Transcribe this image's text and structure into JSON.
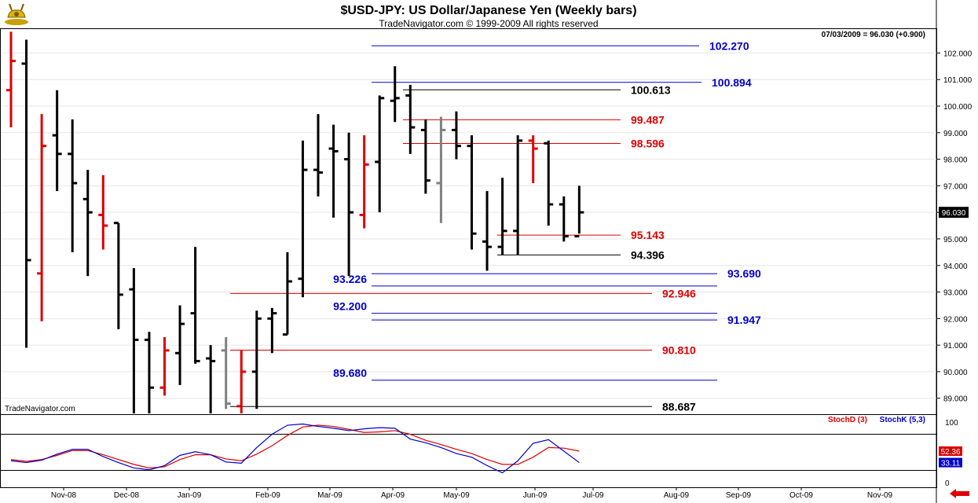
{
  "header": {
    "title": "$USD-JPY:  US Dollar/Japanese Yen  (Weekly bars)",
    "copyright": "TradeNavigator.com © 1999-2009 All rights reserved",
    "last_quote": "07/03/2009 = 96.030 (+0.900)",
    "watermark": "TradeNavigator.com",
    "logo_icon": "bull-icon"
  },
  "chart_data": [
    {
      "type": "ohlc",
      "title": "$USD-JPY:  US Dollar/Japanese Yen  (Weekly bars)",
      "ylim": [
        88.4,
        102.9
      ],
      "y_ticks": [
        89.0,
        90.0,
        91.0,
        92.0,
        93.0,
        94.0,
        95.0,
        96.0,
        97.0,
        98.0,
        99.0,
        100.0,
        101.0,
        102.0
      ],
      "y_tick_labels": [
        "89.000",
        "90.000",
        "91.000",
        "92.000",
        "93.000",
        "94.000",
        "95.000",
        "96.000",
        "97.000",
        "98.000",
        "99.000",
        "100.000",
        "101.000",
        "102.000"
      ],
      "x_month_labels": [
        "Nov-08",
        "Dec-08",
        "Jan-09",
        "Feb-09",
        "Mar-09",
        "Apr-09",
        "May-09",
        "Jun-09",
        "Jul-09",
        "Aug-09",
        "Sep-09",
        "Oct-09",
        "Nov-09"
      ],
      "last_price_label": "96.030",
      "bars": [
        {
          "o": 100.6,
          "h": 102.8,
          "l": 99.2,
          "c": 101.7,
          "color": "red"
        },
        {
          "o": 101.6,
          "h": 102.5,
          "l": 90.9,
          "c": 94.2,
          "color": "black"
        },
        {
          "o": 93.7,
          "h": 99.7,
          "l": 91.9,
          "c": 98.5,
          "color": "red"
        },
        {
          "o": 98.9,
          "h": 100.6,
          "l": 96.8,
          "c": 98.2,
          "color": "black"
        },
        {
          "o": 98.2,
          "h": 99.5,
          "l": 94.5,
          "c": 97.1,
          "color": "black"
        },
        {
          "o": 96.5,
          "h": 97.6,
          "l": 93.6,
          "c": 96.0,
          "color": "black"
        },
        {
          "o": 95.9,
          "h": 97.4,
          "l": 94.6,
          "c": 95.5,
          "color": "red"
        },
        {
          "o": 95.6,
          "h": 95.6,
          "l": 91.6,
          "c": 92.9,
          "color": "black"
        },
        {
          "o": 93.1,
          "h": 93.9,
          "l": 88.4,
          "c": 91.2,
          "color": "black"
        },
        {
          "o": 91.2,
          "h": 91.5,
          "l": 88.4,
          "c": 89.4,
          "color": "black"
        },
        {
          "o": 89.4,
          "h": 91.3,
          "l": 89.1,
          "c": 90.8,
          "color": "red"
        },
        {
          "o": 90.7,
          "h": 92.5,
          "l": 89.5,
          "c": 91.8,
          "color": "black"
        },
        {
          "o": 92.2,
          "h": 94.7,
          "l": 90.3,
          "c": 90.4,
          "color": "black"
        },
        {
          "o": 90.5,
          "h": 91.0,
          "l": 88.4,
          "c": 90.4,
          "color": "black"
        },
        {
          "o": 90.8,
          "h": 91.3,
          "l": 88.6,
          "c": 88.8,
          "color": "gray"
        },
        {
          "o": 88.7,
          "h": 90.8,
          "l": 88.4,
          "c": 90.0,
          "color": "red"
        },
        {
          "o": 90.0,
          "h": 92.3,
          "l": 88.6,
          "c": 92.0,
          "color": "black"
        },
        {
          "o": 92.0,
          "h": 92.4,
          "l": 90.7,
          "c": 92.2,
          "color": "black"
        },
        {
          "o": 91.4,
          "h": 94.5,
          "l": 91.4,
          "c": 93.4,
          "color": "black"
        },
        {
          "o": 93.5,
          "h": 98.7,
          "l": 92.8,
          "c": 97.6,
          "color": "black"
        },
        {
          "o": 97.6,
          "h": 99.7,
          "l": 96.6,
          "c": 97.5,
          "color": "black"
        },
        {
          "o": 98.4,
          "h": 99.3,
          "l": 95.8,
          "c": 98.3,
          "color": "black"
        },
        {
          "o": 98.0,
          "h": 99.0,
          "l": 93.6,
          "c": 96.0,
          "color": "black"
        },
        {
          "o": 95.9,
          "h": 98.9,
          "l": 95.4,
          "c": 97.8,
          "color": "red"
        },
        {
          "o": 97.9,
          "h": 100.4,
          "l": 96.0,
          "c": 100.3,
          "color": "black"
        },
        {
          "o": 100.2,
          "h": 101.5,
          "l": 99.4,
          "c": 100.3,
          "color": "black"
        },
        {
          "o": 100.4,
          "h": 100.8,
          "l": 98.2,
          "c": 99.2,
          "color": "black"
        },
        {
          "o": 99.1,
          "h": 99.5,
          "l": 96.7,
          "c": 97.2,
          "color": "black"
        },
        {
          "o": 97.1,
          "h": 99.6,
          "l": 95.6,
          "c": 99.1,
          "color": "gray"
        },
        {
          "o": 99.1,
          "h": 99.8,
          "l": 98.0,
          "c": 98.5,
          "color": "black"
        },
        {
          "o": 98.5,
          "h": 98.9,
          "l": 94.6,
          "c": 95.2,
          "color": "black"
        },
        {
          "o": 94.9,
          "h": 96.8,
          "l": 93.8,
          "c": 94.7,
          "color": "black"
        },
        {
          "o": 94.7,
          "h": 97.3,
          "l": 94.4,
          "c": 95.3,
          "color": "black"
        },
        {
          "o": 95.3,
          "h": 98.9,
          "l": 94.4,
          "c": 98.7,
          "color": "black"
        },
        {
          "o": 98.7,
          "h": 98.9,
          "l": 97.1,
          "c": 98.4,
          "color": "red"
        },
        {
          "o": 98.6,
          "h": 98.7,
          "l": 95.5,
          "c": 96.3,
          "color": "black"
        },
        {
          "o": 96.3,
          "h": 96.6,
          "l": 94.9,
          "c": 95.1,
          "color": "black"
        },
        {
          "o": 95.1,
          "h": 97.0,
          "l": 95.2,
          "c": 96.0,
          "color": "black"
        }
      ],
      "levels": [
        {
          "value": 102.27,
          "label": "102.270",
          "color": "#0000cc",
          "label_side": "right"
        },
        {
          "value": 100.894,
          "label": "100.894",
          "color": "#0000cc",
          "label_side": "right"
        },
        {
          "value": 100.613,
          "label": "100.613",
          "color": "#000000",
          "label_side": "right"
        },
        {
          "value": 99.487,
          "label": "99.487",
          "color": "#dd0000",
          "label_side": "right"
        },
        {
          "value": 98.596,
          "label": "98.596",
          "color": "#dd0000",
          "label_side": "right"
        },
        {
          "value": 95.143,
          "label": "95.143",
          "color": "#dd0000",
          "label_side": "right"
        },
        {
          "value": 94.396,
          "label": "94.396",
          "color": "#000000",
          "label_side": "right"
        },
        {
          "value": 93.69,
          "label": "93.690",
          "color": "#0000cc",
          "label_side": "right"
        },
        {
          "value": 93.226,
          "label": "93.226",
          "color": "#0000cc",
          "label_side": "left"
        },
        {
          "value": 92.946,
          "label": "92.946",
          "color": "#dd0000",
          "label_side": "right"
        },
        {
          "value": 92.2,
          "label": "92.200",
          "color": "#0000cc",
          "label_side": "left"
        },
        {
          "value": 91.947,
          "label": "91.947",
          "color": "#0000cc",
          "label_side": "right"
        },
        {
          "value": 90.81,
          "label": "90.810",
          "color": "#dd0000",
          "label_side": "right"
        },
        {
          "value": 89.68,
          "label": "89.680",
          "color": "#0000cc",
          "label_side": "left"
        },
        {
          "value": 88.687,
          "label": "88.687",
          "color": "#000000",
          "label_side": "right"
        }
      ]
    },
    {
      "type": "line",
      "title": "Stochastic",
      "ylim": [
        -8,
        112
      ],
      "y_ticks": [
        0,
        100
      ],
      "y_tick_labels": [
        "0",
        "100"
      ],
      "ref_lines": [
        80,
        20
      ],
      "series": [
        {
          "name": "StochD (3)",
          "color": "#dd0000",
          "last_label": "52.36",
          "values": [
            38,
            35,
            38,
            45,
            53,
            53,
            46,
            38,
            30,
            24,
            26,
            38,
            46,
            46,
            39,
            36,
            47,
            61,
            78,
            92,
            95,
            93,
            88,
            83,
            84,
            86,
            80,
            70,
            63,
            55,
            48,
            38,
            30,
            30,
            42,
            58,
            57,
            52
          ]
        },
        {
          "name": "StochK (5,3)",
          "color": "#0000cc",
          "last_label": "33.11",
          "values": [
            36,
            33,
            37,
            47,
            55,
            55,
            43,
            33,
            24,
            21,
            28,
            45,
            51,
            46,
            34,
            32,
            58,
            80,
            95,
            97,
            93,
            90,
            86,
            89,
            91,
            90,
            72,
            66,
            58,
            48,
            42,
            28,
            16,
            36,
            65,
            71,
            52,
            33
          ]
        }
      ]
    }
  ]
}
